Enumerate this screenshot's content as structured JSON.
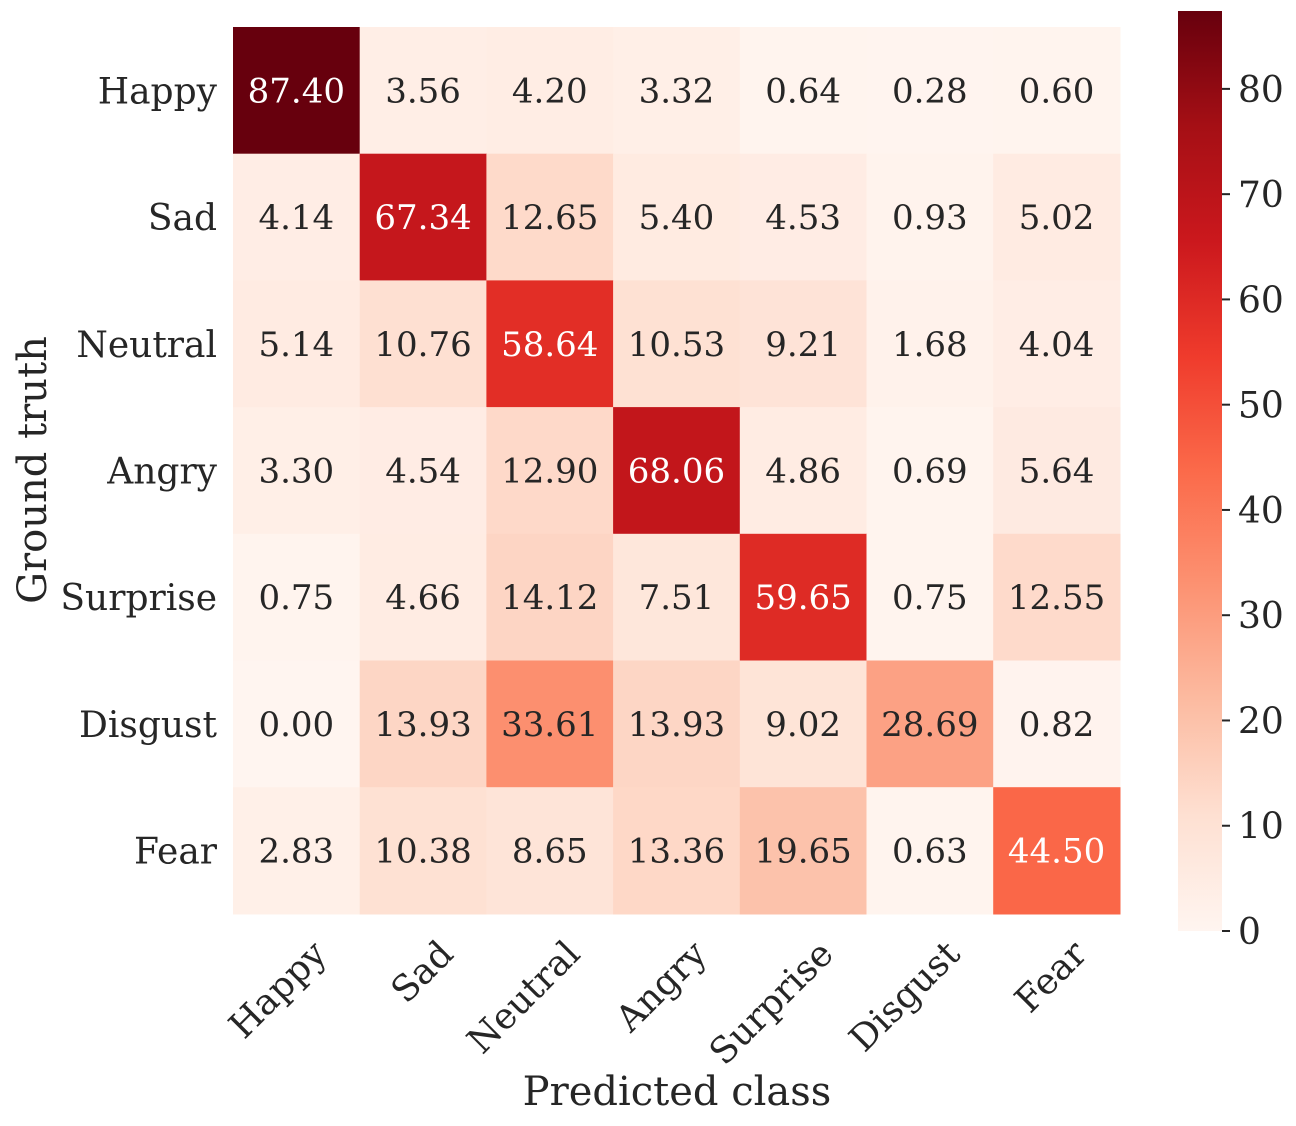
{
  "chart_data": {
    "type": "heatmap",
    "title": "",
    "xlabel": "Predicted class",
    "ylabel": "Ground truth",
    "x_categories": [
      "Happy",
      "Sad",
      "Neutral",
      "Angry",
      "Surprise",
      "Disgust",
      "Fear"
    ],
    "y_categories": [
      "Happy",
      "Sad",
      "Neutral",
      "Angry",
      "Surprise",
      "Disgust",
      "Fear"
    ],
    "values": [
      [
        87.4,
        3.56,
        4.2,
        3.32,
        0.64,
        0.28,
        0.6
      ],
      [
        4.14,
        67.34,
        12.65,
        5.4,
        4.53,
        0.93,
        5.02
      ],
      [
        5.14,
        10.76,
        58.64,
        10.53,
        9.21,
        1.68,
        4.04
      ],
      [
        3.3,
        4.54,
        12.9,
        68.06,
        4.86,
        0.69,
        5.64
      ],
      [
        0.75,
        4.66,
        14.12,
        7.51,
        59.65,
        0.75,
        12.55
      ],
      [
        0.0,
        13.93,
        33.61,
        13.93,
        9.02,
        28.69,
        0.82
      ],
      [
        2.83,
        10.38,
        8.65,
        13.36,
        19.65,
        0.63,
        44.5
      ]
    ],
    "value_format": "2 decimals",
    "colormap": "Reds",
    "colorbar": {
      "range": [
        0,
        87.4
      ],
      "ticks": [
        0,
        10,
        20,
        30,
        40,
        50,
        60,
        70,
        80
      ]
    }
  }
}
